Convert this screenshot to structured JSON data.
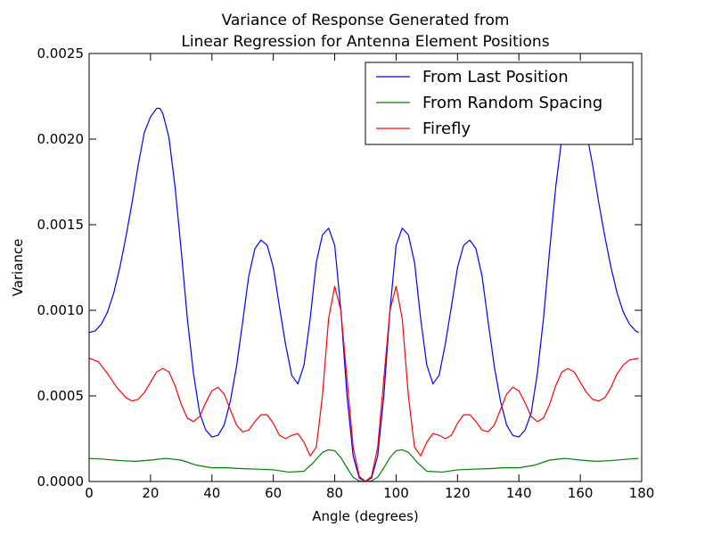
{
  "chart_data": {
    "type": "line",
    "title_lines": [
      "Variance of Response Generated from",
      "Linear Regression for Antenna Element Positions"
    ],
    "xlabel": "Angle (degrees)",
    "ylabel": "Variance",
    "xlim": [
      0,
      180
    ],
    "ylim": [
      0,
      0.0025
    ],
    "xticks": [
      0,
      20,
      40,
      60,
      80,
      100,
      120,
      140,
      160,
      180
    ],
    "xtick_labels": [
      "0",
      "20",
      "40",
      "60",
      "80",
      "100",
      "120",
      "140",
      "160",
      "180"
    ],
    "yticks": [
      0,
      0.0005,
      0.001,
      0.0015,
      0.002,
      0.0025
    ],
    "ytick_labels": [
      "0.0000",
      "0.0005",
      "0.0010",
      "0.0015",
      "0.0020",
      "0.0025"
    ],
    "grid": false,
    "legend_position": "top-right",
    "series": [
      {
        "name": "From Last Position",
        "color": "#0000ff",
        "x": [
          0,
          2,
          4,
          6,
          8,
          10,
          12,
          14,
          16,
          18,
          20,
          22,
          23,
          24,
          26,
          28,
          30,
          32,
          34,
          36,
          38,
          40,
          42,
          44,
          46,
          48,
          50,
          52,
          54,
          56,
          58,
          60,
          62,
          64,
          66,
          68,
          70,
          72,
          74,
          76,
          78,
          80,
          82,
          84,
          86,
          88,
          90,
          92,
          94,
          96,
          98,
          100,
          102,
          104,
          106,
          108,
          110,
          112,
          114,
          116,
          118,
          120,
          122,
          124,
          126,
          128,
          130,
          132,
          134,
          136,
          138,
          140,
          142,
          144,
          146,
          148,
          150,
          152,
          154,
          156,
          158,
          160,
          162,
          164,
          166,
          168,
          170,
          172,
          174,
          176,
          178,
          179
        ],
        "values": [
          0.00087,
          0.00088,
          0.00092,
          0.00099,
          0.0011,
          0.00125,
          0.00143,
          0.00163,
          0.00185,
          0.00204,
          0.00213,
          0.00218,
          0.00218,
          0.00215,
          0.00201,
          0.00172,
          0.00135,
          0.00095,
          0.00063,
          0.0004,
          0.0003,
          0.00026,
          0.00027,
          0.00033,
          0.00047,
          0.00067,
          0.00093,
          0.0012,
          0.00136,
          0.00141,
          0.00138,
          0.00125,
          0.00102,
          0.0008,
          0.00062,
          0.00057,
          0.00068,
          0.00095,
          0.00128,
          0.00144,
          0.00148,
          0.00138,
          0.001,
          0.0005,
          0.00015,
          2e-05,
          0.0,
          2e-05,
          0.00015,
          0.0005,
          0.001,
          0.00138,
          0.00148,
          0.00144,
          0.00128,
          0.00095,
          0.00068,
          0.00057,
          0.00062,
          0.0008,
          0.00102,
          0.00125,
          0.00138,
          0.00141,
          0.00136,
          0.0012,
          0.00093,
          0.00067,
          0.00047,
          0.00033,
          0.00027,
          0.00026,
          0.0003,
          0.0004,
          0.00063,
          0.00095,
          0.00135,
          0.00172,
          0.00201,
          0.00215,
          0.00218,
          0.00213,
          0.00204,
          0.00185,
          0.00163,
          0.00143,
          0.00125,
          0.0011,
          0.00099,
          0.00092,
          0.00088,
          0.00087
        ]
      },
      {
        "name": "From Random Spacing",
        "color": "#008000",
        "x": [
          0,
          5,
          10,
          15,
          20,
          25,
          30,
          35,
          40,
          45,
          50,
          55,
          60,
          65,
          70,
          73,
          76,
          78,
          80,
          82,
          84,
          86,
          88,
          90,
          92,
          94,
          96,
          98,
          100,
          102,
          104,
          107,
          110,
          115,
          120,
          125,
          130,
          135,
          140,
          145,
          150,
          155,
          160,
          165,
          170,
          175,
          179
        ],
        "values": [
          0.000135,
          0.00013,
          0.000122,
          0.000118,
          0.000125,
          0.000135,
          0.000125,
          9.5e-05,
          8e-05,
          8e-05,
          7.5e-05,
          7.2e-05,
          6.8e-05,
          5.5e-05,
          6e-05,
          0.00011,
          0.00017,
          0.000185,
          0.00018,
          0.00014,
          8e-05,
          2.5e-05,
          3e-06,
          0.0,
          3e-06,
          2.5e-05,
          8e-05,
          0.00014,
          0.00018,
          0.000185,
          0.00017,
          0.00011,
          6e-05,
          5.5e-05,
          6.8e-05,
          7.2e-05,
          7.5e-05,
          8e-05,
          8e-05,
          9.5e-05,
          0.000125,
          0.000135,
          0.000125,
          0.000118,
          0.000122,
          0.00013,
          0.000135
        ]
      },
      {
        "name": "Firefly",
        "color": "#ff0000",
        "x": [
          0,
          3,
          6,
          9,
          12,
          14,
          16,
          18,
          20,
          22,
          24,
          26,
          28,
          30,
          32,
          34,
          36,
          38,
          40,
          42,
          44,
          46,
          48,
          50,
          52,
          54,
          56,
          58,
          60,
          62,
          64,
          66,
          68,
          70,
          72,
          74,
          76,
          78,
          80,
          82,
          84,
          86,
          88,
          90,
          92,
          94,
          96,
          98,
          100,
          102,
          104,
          106,
          108,
          110,
          112,
          114,
          116,
          118,
          120,
          122,
          124,
          126,
          128,
          130,
          132,
          134,
          136,
          138,
          140,
          142,
          144,
          146,
          148,
          150,
          152,
          154,
          156,
          158,
          160,
          162,
          164,
          166,
          168,
          170,
          172,
          174,
          176,
          179
        ],
        "values": [
          0.00072,
          0.0007,
          0.00063,
          0.00055,
          0.00049,
          0.00047,
          0.00048,
          0.00052,
          0.00058,
          0.00064,
          0.00066,
          0.00064,
          0.00056,
          0.00045,
          0.00037,
          0.00035,
          0.00038,
          0.00046,
          0.00053,
          0.00055,
          0.00051,
          0.00042,
          0.00033,
          0.00029,
          0.0003,
          0.00035,
          0.00039,
          0.00039,
          0.00034,
          0.00027,
          0.00025,
          0.00027,
          0.00028,
          0.00023,
          0.00015,
          0.0002,
          0.0005,
          0.00095,
          0.00114,
          0.001,
          0.0006,
          0.0002,
          3e-05,
          0.0,
          3e-05,
          0.0002,
          0.0006,
          0.001,
          0.00114,
          0.00095,
          0.0005,
          0.0002,
          0.00015,
          0.00023,
          0.00028,
          0.00027,
          0.00025,
          0.00027,
          0.00034,
          0.00039,
          0.00039,
          0.00035,
          0.0003,
          0.00029,
          0.00033,
          0.00042,
          0.00051,
          0.00055,
          0.00053,
          0.00046,
          0.00038,
          0.00035,
          0.00037,
          0.00045,
          0.00056,
          0.00064,
          0.00066,
          0.00064,
          0.00058,
          0.00052,
          0.00048,
          0.00047,
          0.00049,
          0.00055,
          0.00063,
          0.00068,
          0.00071,
          0.00072
        ]
      }
    ]
  }
}
